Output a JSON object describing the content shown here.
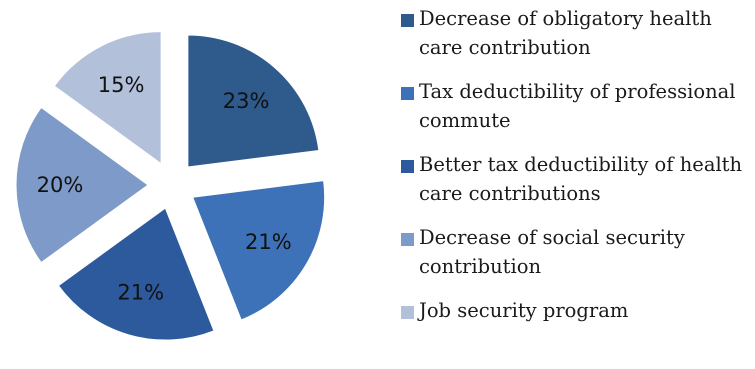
{
  "chart_data": {
    "type": "pie",
    "slices": [
      {
        "label": "Decrease of obligatory health care contribution",
        "value": 23,
        "value_label": "23%",
        "color": "#2E5A8C"
      },
      {
        "label": "Tax deductibility of professional commute",
        "value": 21,
        "value_label": "21%",
        "color": "#3D72B8"
      },
      {
        "label": "Better tax deductibility of health care contributions",
        "value": 21,
        "value_label": "21%",
        "color": "#2C5A9C"
      },
      {
        "label": "Decrease of social security contribution",
        "value": 20,
        "value_label": "20%",
        "color": "#7E9AC8"
      },
      {
        "label": "Job security program",
        "value": 15,
        "value_label": "15%",
        "color": "#B2C0DA"
      }
    ],
    "legend_position": "right",
    "style": "exploded"
  }
}
